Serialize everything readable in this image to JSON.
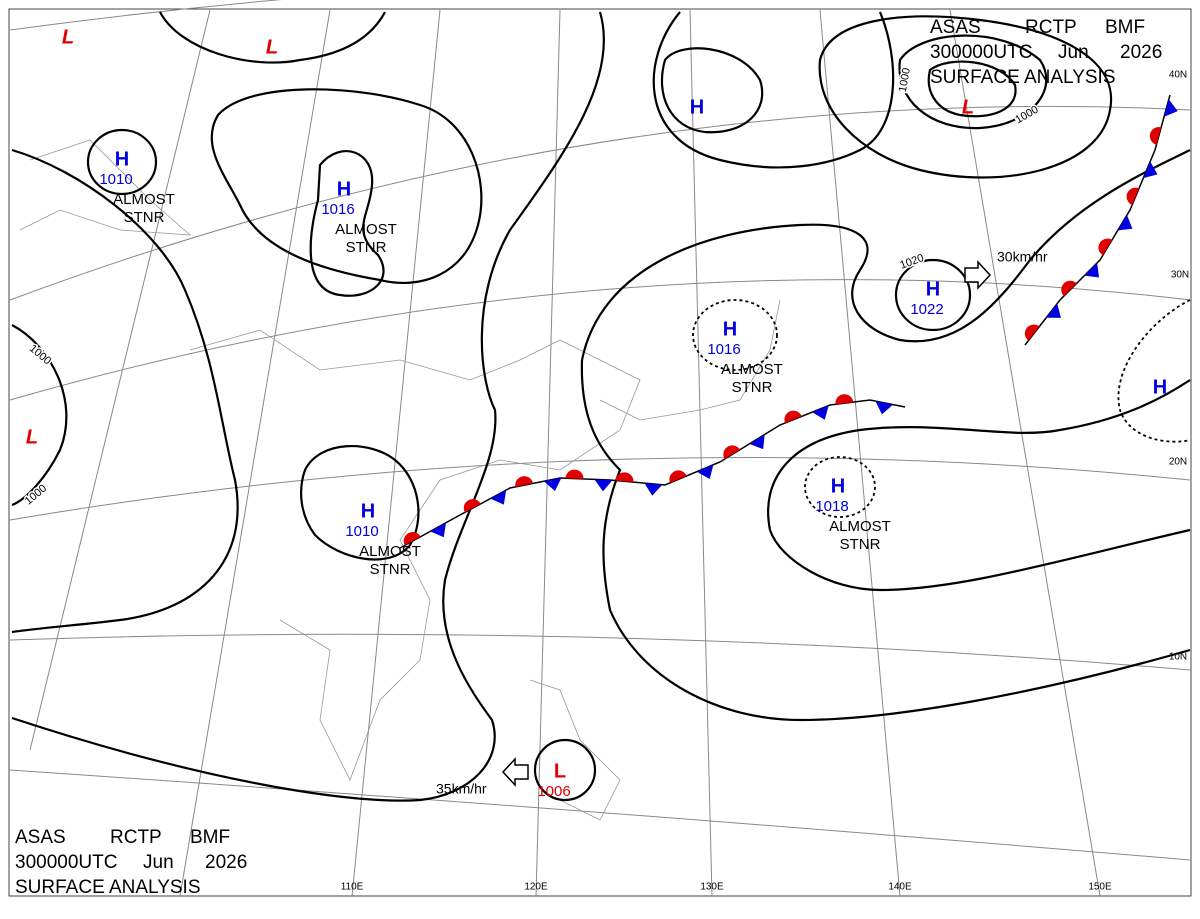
{
  "header": {
    "agency": "ASAS",
    "station": "RCTP",
    "office": "BMF",
    "time": "300000UTC",
    "month": "Jun",
    "year": "2026",
    "product": "SURFACE ANALYSIS"
  },
  "centers": [
    {
      "symbol": "L"
    },
    {
      "symbol": "L"
    },
    {
      "symbol": "H",
      "pressure": "1010",
      "note": [
        "ALMOST",
        "STNR"
      ]
    },
    {
      "symbol": "H",
      "pressure": "1016",
      "note": [
        "ALMOST",
        "STNR"
      ]
    },
    {
      "symbol": "H"
    },
    {
      "symbol": "L"
    },
    {
      "symbol": "H",
      "pressure": "1016",
      "note": [
        "ALMOST",
        "STNR"
      ]
    },
    {
      "symbol": "H",
      "pressure": "1022"
    },
    {
      "symbol": "H"
    },
    {
      "symbol": "L"
    },
    {
      "symbol": "H",
      "pressure": "1018",
      "note": [
        "ALMOST",
        "STNR"
      ]
    },
    {
      "symbol": "H",
      "pressure": "1010",
      "note": [
        "ALMOST",
        "STNR"
      ]
    },
    {
      "symbol": "L",
      "pressure": "1006"
    }
  ],
  "isobar_labels": [
    "1000",
    "1000",
    "1000",
    "1000",
    "1020"
  ],
  "motions": [
    "30km/hr",
    "35km/hr"
  ],
  "latitudes": [
    "40N",
    "30N",
    "20N",
    "10N"
  ],
  "longitudes": [
    "110E",
    "120E",
    "130E",
    "140E",
    "150E"
  ]
}
